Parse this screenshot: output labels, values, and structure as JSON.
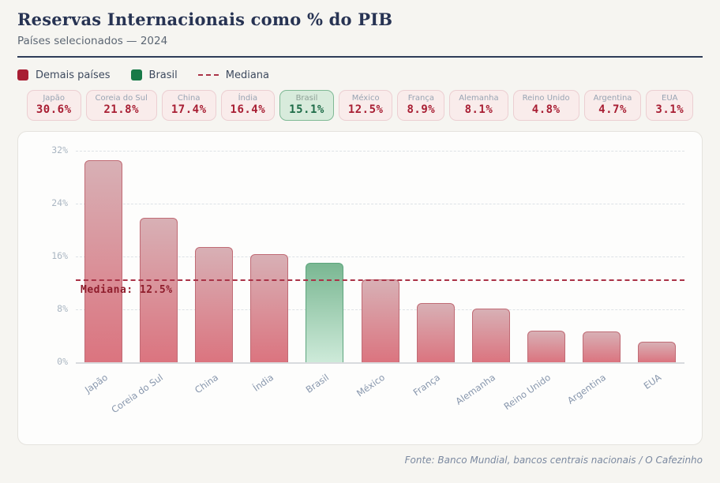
{
  "header": {
    "title": "Reservas Internacionais como % do PIB",
    "subtitle": "Países selecionados — 2024"
  },
  "legend": {
    "items": [
      {
        "label": "Demais países",
        "marker": "square",
        "color": "#a81e33"
      },
      {
        "label": "Brasil",
        "marker": "square",
        "color": "#187a48"
      },
      {
        "label": "Mediana",
        "marker": "dash",
        "color": "#aa3347"
      }
    ]
  },
  "cards": [
    {
      "country": "Japão",
      "value": "30.6%",
      "highlight": false
    },
    {
      "country": "Coreia do Sul",
      "value": "21.8%",
      "highlight": false
    },
    {
      "country": "China",
      "value": "17.4%",
      "highlight": false
    },
    {
      "country": "Índia",
      "value": "16.4%",
      "highlight": false
    },
    {
      "country": "Brasil",
      "value": "15.1%",
      "highlight": true
    },
    {
      "country": "México",
      "value": "12.5%",
      "highlight": false
    },
    {
      "country": "França",
      "value": "8.9%",
      "highlight": false
    },
    {
      "country": "Alemanha",
      "value": "8.1%",
      "highlight": false
    },
    {
      "country": "Reino Unido",
      "value": "4.8%",
      "highlight": false
    },
    {
      "country": "Argentina",
      "value": "4.7%",
      "highlight": false
    },
    {
      "country": "EUA",
      "value": "3.1%",
      "highlight": false
    }
  ],
  "chart_data": {
    "type": "bar",
    "title": "Reservas Internacionais como % do PIB",
    "subtitle": "Países selecionados — 2024",
    "categories": [
      "Japão",
      "Coreia do Sul",
      "China",
      "Índia",
      "Brasil",
      "México",
      "França",
      "Alemanha",
      "Reino Unido",
      "Argentina",
      "EUA"
    ],
    "values": [
      30.6,
      21.8,
      17.4,
      16.4,
      15.1,
      12.5,
      8.9,
      8.1,
      4.8,
      4.7,
      3.1
    ],
    "highlight_category": "Brasil",
    "xlabel": "",
    "ylabel": "",
    "ylim": [
      0,
      32
    ],
    "yticks": [
      0,
      8,
      16,
      24,
      32
    ],
    "ytick_suffix": "%",
    "grid": true,
    "legend_position": "top-left",
    "median": {
      "value": 12.5,
      "label": "Mediana: 12.5%"
    }
  },
  "colors": {
    "accent_red": "#a81e33",
    "accent_green": "#187a48",
    "bar_red_top": "#d8b0b5",
    "bar_red_bottom": "#db747f",
    "bar_red_border": "#c06b75",
    "bar_green_top": "#7ab792",
    "bar_green_bottom": "#cdead9",
    "bar_green_border": "#5da57d",
    "median_line": "#aa3347"
  },
  "footer": {
    "source": "Fonte: Banco Mundial, bancos centrais nacionais / O Cafezinho"
  }
}
